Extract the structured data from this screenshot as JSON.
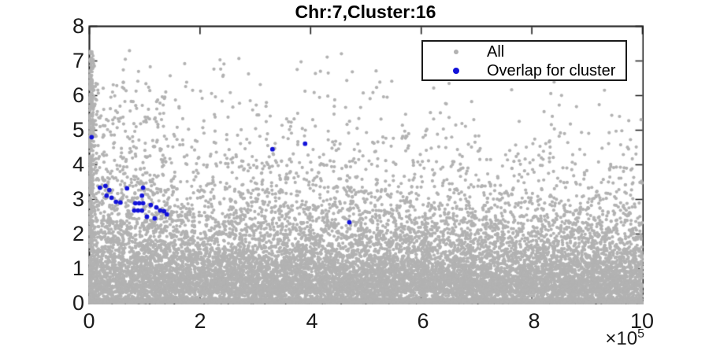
{
  "figure": {
    "title": "Chr:7,Cluster:16",
    "background": "#ffffff",
    "axis_color": "#1a1a1a",
    "tick_length": 9
  },
  "legend": {
    "entries": [
      {
        "label": "All",
        "color": "#b2b2b2"
      },
      {
        "label": "Overlap for cluster",
        "color": "#1212d9"
      }
    ]
  },
  "chart_data": {
    "type": "scatter",
    "title": "Chr:7,Cluster:16",
    "xlabel": "",
    "ylabel": "",
    "x_multiplier_base": "×10",
    "x_multiplier_exp": "5",
    "xlim": [
      0,
      10
    ],
    "ylim": [
      0,
      8
    ],
    "xticks": [
      "0",
      "2",
      "4",
      "6",
      "8",
      "10"
    ],
    "xtick_values": [
      0,
      2,
      4,
      6,
      8,
      10
    ],
    "ytick_values": [
      0,
      1,
      2,
      3,
      4,
      5,
      6,
      7,
      8
    ],
    "yticks": [
      "0",
      "1",
      "2",
      "3",
      "4",
      "5",
      "6",
      "7",
      "8"
    ],
    "grid": false,
    "box": true,
    "legend_position": "top-right-inside",
    "series": [
      {
        "name": "All",
        "color": "#b2b2b2",
        "marker": "dot",
        "marker_radius": 2.1,
        "distribution": {
          "comment": "procedural dense cloud read off the figure: solid mass below y~2.5 thinning exponentially above, upper envelope ~7.3 at x=0 falling to ~6.5 at x=10, dense column at x~0, dense stripe y<0.11, sparse gap y 0.13-0.30",
          "seed": 42,
          "main_count": 15500,
          "scale_base": 1.28,
          "scale_slope": -0.035,
          "y_clip": 7.3,
          "gap_range": [
            0.13,
            0.3
          ],
          "gap_drop": 0.62,
          "stripe_count": 2600,
          "stripe_ymax": 0.11,
          "left_column_count": 330,
          "left_column_xmax": 0.13,
          "left_column_ymax": 7.25,
          "left_boost_count": 260,
          "left_boost_xmax": 1.4,
          "left_boost_pow": 1.7,
          "left_boost_ymax": 6.4
        }
      },
      {
        "name": "Overlap for cluster",
        "color": "#1212d9",
        "marker": "dot",
        "marker_radius": 2.9,
        "points": [
          [
            0.04,
            4.8
          ],
          [
            3.31,
            4.45
          ],
          [
            3.9,
            4.61
          ],
          [
            4.7,
            2.34
          ],
          [
            0.19,
            3.34
          ],
          [
            0.29,
            3.39
          ],
          [
            0.36,
            3.27
          ],
          [
            0.68,
            3.32
          ],
          [
            0.97,
            3.34
          ],
          [
            0.31,
            3.11
          ],
          [
            0.4,
            3.05
          ],
          [
            0.95,
            3.11
          ],
          [
            0.48,
            2.93
          ],
          [
            0.56,
            2.91
          ],
          [
            0.83,
            2.89
          ],
          [
            0.9,
            2.89
          ],
          [
            0.97,
            2.89
          ],
          [
            1.11,
            2.84
          ],
          [
            1.21,
            2.77
          ],
          [
            0.81,
            2.68
          ],
          [
            0.88,
            2.68
          ],
          [
            0.95,
            2.68
          ],
          [
            1.28,
            2.68
          ],
          [
            1.35,
            2.66
          ],
          [
            1.04,
            2.5
          ],
          [
            1.18,
            2.45
          ],
          [
            1.4,
            2.57
          ]
        ]
      }
    ]
  }
}
